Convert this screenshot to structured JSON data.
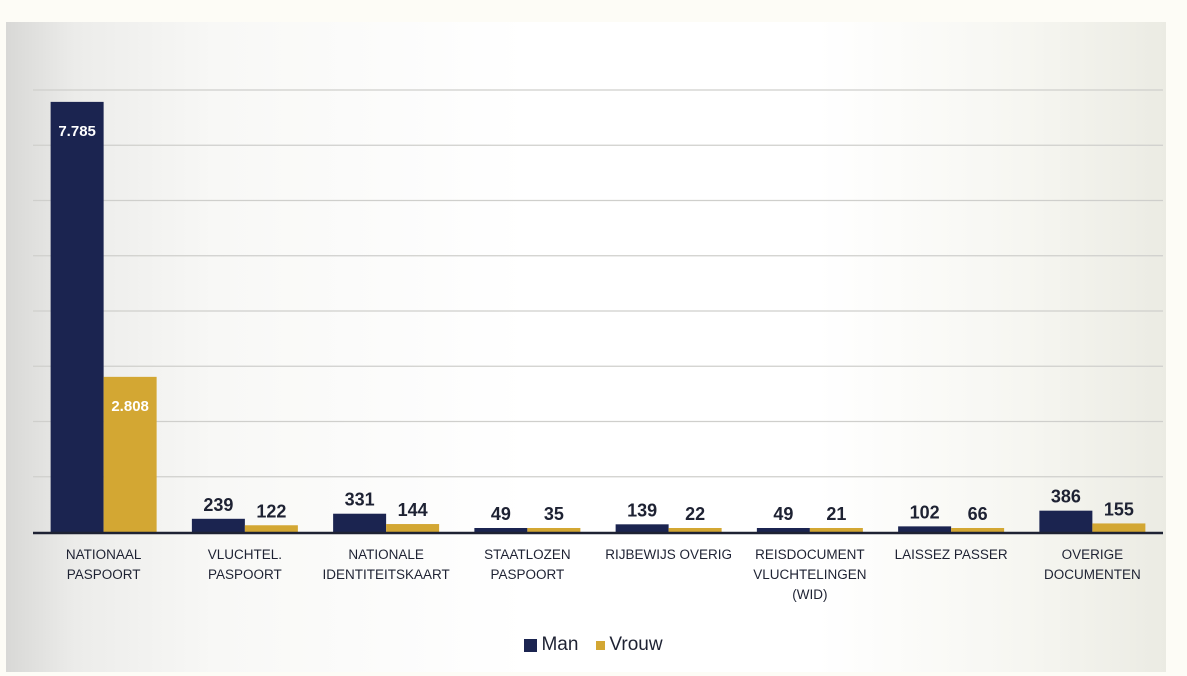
{
  "chart_data": {
    "type": "bar",
    "categories": [
      [
        "NATIONAAL",
        "PASPOORT"
      ],
      [
        "VLUCHTEL.",
        "PASPOORT"
      ],
      [
        "NATIONALE",
        "IDENTITEITSKAART"
      ],
      [
        "STAATLOZEN",
        "PASPOORT"
      ],
      [
        "RIJBEWIJS OVERIG"
      ],
      [
        "REISDOCUMENT",
        "VLUCHTELINGEN",
        "(WID)"
      ],
      [
        "LAISSEZ PASSER"
      ],
      [
        "OVERIGE",
        "DOCUMENTEN"
      ]
    ],
    "series": [
      {
        "name": "Man",
        "color": "#1b2450",
        "values": [
          7785,
          239,
          331,
          49,
          139,
          49,
          102,
          386
        ],
        "labels": [
          "7.785",
          "239",
          "331",
          "49",
          "139",
          "49",
          "102",
          "386"
        ]
      },
      {
        "name": "Vrouw",
        "color": "#d3a733",
        "values": [
          2808,
          122,
          144,
          35,
          22,
          21,
          66,
          155
        ],
        "labels": [
          "2.808",
          "122",
          "144",
          "35",
          "22",
          "21",
          "66",
          "155"
        ]
      }
    ],
    "ylim": [
      0,
      8000
    ],
    "grid": true,
    "legend": "bottom-center"
  }
}
